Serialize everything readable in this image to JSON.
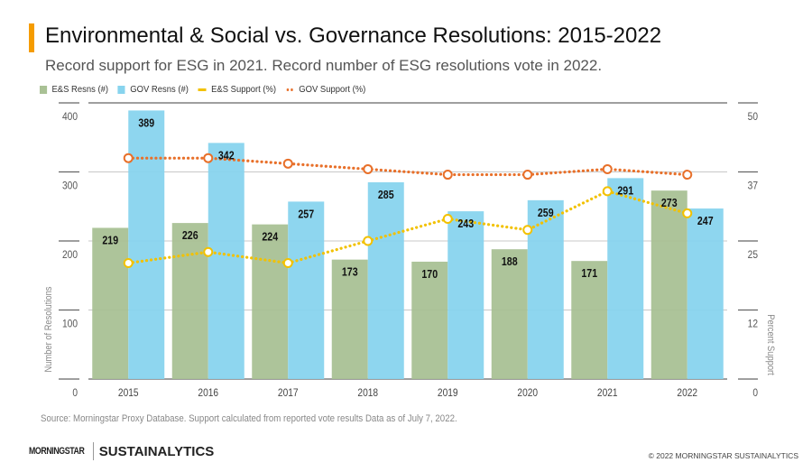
{
  "header": {
    "title": "Environmental & Social vs. Governance Resolutions: 2015-2022",
    "subtitle": "Record support for ESG in 2021.  Record number of ESG resolutions vote in 2022.",
    "accent_color": "#f59c00"
  },
  "legend": [
    {
      "label": "E&S Resns (#)",
      "kind": "box",
      "color": "#a9c195"
    },
    {
      "label": "GOV Resns (#)",
      "kind": "box",
      "color": "#88d4ee"
    },
    {
      "label": "E&S Support (%)",
      "kind": "line",
      "color": "#f2c100"
    },
    {
      "label": "GOV Support (%)",
      "kind": "dots",
      "color": "#e8702a"
    }
  ],
  "chart_data": {
    "type": "bar",
    "title": "Environmental & Social vs. Governance Resolutions: 2015-2022",
    "subtitle": "Record support for ESG in 2021.  Record number of ESG resolutions vote in 2022.",
    "categories": [
      "2015",
      "2016",
      "2017",
      "2018",
      "2019",
      "2020",
      "2021",
      "2022"
    ],
    "series": [
      {
        "name": "E&S Resns (#)",
        "type": "bar",
        "axis": "left",
        "color": "#a9c195",
        "values": [
          219,
          226,
          224,
          173,
          170,
          188,
          171,
          273
        ]
      },
      {
        "name": "GOV Resns (#)",
        "type": "bar",
        "axis": "left",
        "color": "#88d4ee",
        "values": [
          389,
          342,
          257,
          285,
          243,
          259,
          291,
          247
        ]
      },
      {
        "name": "E&S Support (%)",
        "type": "line",
        "axis": "right",
        "color": "#f2c100",
        "values": [
          21,
          23,
          21,
          25,
          29,
          27,
          34,
          30
        ]
      },
      {
        "name": "GOV Support (%)",
        "type": "line",
        "axis": "right",
        "color": "#e8702a",
        "values": [
          40,
          40,
          39,
          38,
          37,
          37,
          38,
          37
        ]
      }
    ],
    "ylabel": "Number of Resolutions",
    "y2label": "Percent Support",
    "xlabel": "",
    "ylim": [
      0,
      400
    ],
    "y2lim": [
      0,
      50
    ],
    "yticks": [
      "0",
      "100",
      "200",
      "300",
      "400"
    ],
    "y2ticks": [
      "0",
      "12",
      "25",
      "37",
      "50"
    ],
    "grid": true,
    "legend_position": "top-left"
  },
  "footer": {
    "source": "Source: Morningstar Proxy Database. Support calculated from reported vote results  Data as of July 7, 2022.",
    "logo_morningstar": "MORNINGSTAR",
    "logo_sustainalytics": "SUSTAINALYTICS",
    "copyright": "© 2022 MORNINGSTAR SUSTAINALYTICS"
  }
}
